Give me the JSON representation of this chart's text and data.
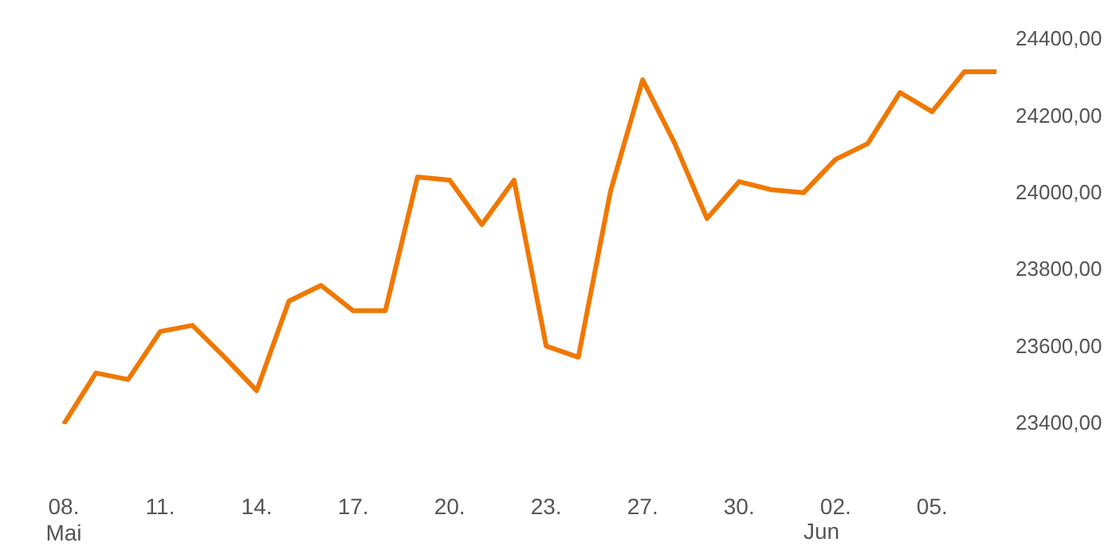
{
  "chart_data": {
    "type": "line",
    "categories": [
      "08.\nMai",
      null,
      null,
      "11.",
      null,
      null,
      "14.",
      null,
      null,
      "17.",
      null,
      null,
      "20.",
      null,
      null,
      "23.",
      null,
      null,
      "27.",
      null,
      null,
      "30.",
      null,
      null,
      "02.",
      null,
      null,
      "05.",
      null,
      null
    ],
    "annotations": [
      "Jun"
    ],
    "series": [
      {
        "color": "#f07800",
        "values": [
          23400,
          23533,
          23516,
          23641,
          23657,
          23574,
          23487,
          23720,
          23761,
          23695,
          23695,
          24043,
          24035,
          23919,
          24035,
          23603,
          23574,
          24006,
          24296,
          24130,
          23935,
          24031,
          24010,
          24002,
          24089,
          24130,
          24263,
          24213,
          24317,
          24317
        ]
      }
    ],
    "ylim": [
      23400,
      24400
    ],
    "yticks": [
      {
        "value": 23400,
        "label": "23400,00"
      },
      {
        "value": 23600,
        "label": "23600,00"
      },
      {
        "value": 23800,
        "label": "23800,00"
      },
      {
        "value": 24000,
        "label": "24000,00"
      },
      {
        "value": 24200,
        "label": "24200,00"
      },
      {
        "value": 24400,
        "label": "24400,00"
      }
    ],
    "grid": false,
    "legend": false,
    "marker": "none",
    "line_style": "solid"
  }
}
